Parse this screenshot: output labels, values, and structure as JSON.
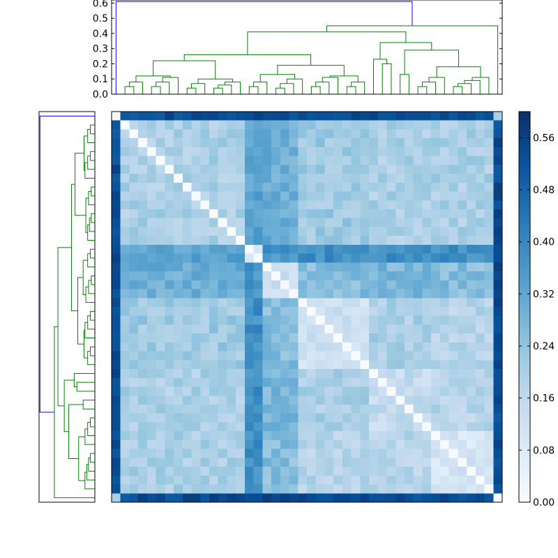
{
  "chart_data": {
    "type": "heatmap",
    "title": "",
    "xlabel": "",
    "ylabel": "",
    "n": 44,
    "matrix": {
      "colormap": "Blues",
      "diagonal": 0.0,
      "first_column_value": 0.5,
      "last_row_value": 0.56,
      "description_blocks": [
        {
          "rows": [
            0,
            14
          ],
          "cols": [
            0,
            14
          ],
          "value": 0.2
        },
        {
          "rows": [
            15,
            43
          ],
          "cols": [
            15,
            43
          ],
          "value": 0.12
        },
        {
          "rows": [
            0,
            14
          ],
          "cols": [
            15,
            43
          ],
          "value": 0.26
        }
      ]
    },
    "colorbar": {
      "ticks": [
        "0.00",
        "0.08",
        "0.16",
        "0.24",
        "0.32",
        "0.40",
        "0.48",
        "0.56"
      ],
      "range": [
        0.0,
        0.6
      ]
    },
    "top_dendrogram": {
      "yticks": [
        "0.0",
        "0.1",
        "0.2",
        "0.3",
        "0.4",
        "0.5",
        "0.6"
      ],
      "ylim": [
        0.0,
        0.62
      ],
      "root_height": 0.61,
      "main_branch_height": 0.41,
      "colors": {
        "outlier": "#0000ff",
        "cluster": "#008000"
      }
    },
    "left_dendrogram": {
      "colors": {
        "outlier": "#0000ff",
        "cluster": "#008000"
      }
    }
  }
}
